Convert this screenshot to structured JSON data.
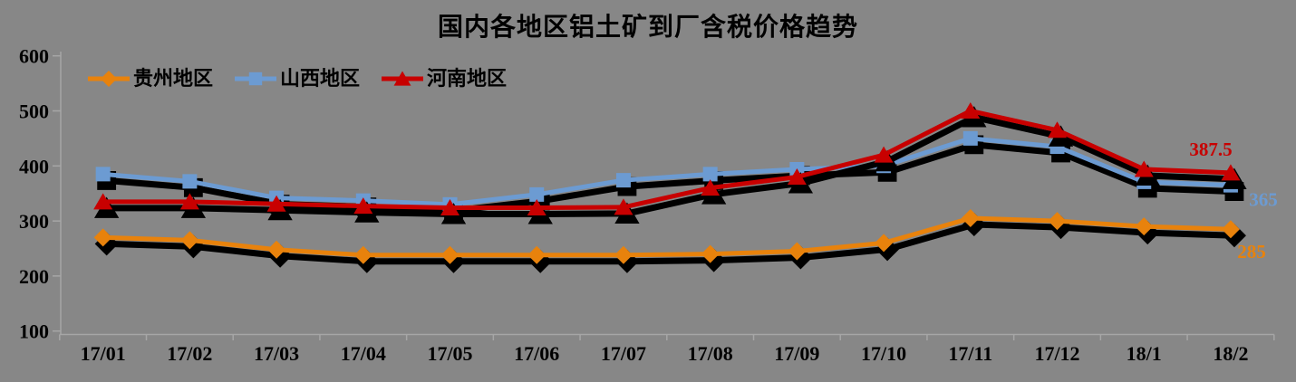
{
  "title": "国内各地区铝土矿到厂含税价格趋势",
  "chart_data": {
    "type": "line",
    "categories": [
      "17/01",
      "17/02",
      "17/03",
      "17/04",
      "17/05",
      "17/06",
      "17/07",
      "17/08",
      "17/09",
      "17/10",
      "17/11",
      "17/12",
      "18/1",
      "18/2"
    ],
    "series": [
      {
        "name": "贵州地区",
        "marker": "diamond",
        "color": "#E8820C",
        "values": [
          270,
          265,
          248,
          238,
          238,
          238,
          238,
          240,
          245,
          260,
          305,
          300,
          290,
          285
        ],
        "end_label": "285"
      },
      {
        "name": "山西地区",
        "marker": "square",
        "color": "#6C9BD2",
        "values": [
          385,
          372,
          342,
          337,
          330,
          348,
          374,
          385,
          394,
          400,
          450,
          435,
          371,
          365
        ],
        "end_label": "365"
      },
      {
        "name": "河南地区",
        "marker": "triangle",
        "color": "#C80000",
        "values": [
          335,
          335,
          331,
          327,
          324,
          324,
          325,
          360,
          380,
          420,
          500,
          465,
          394,
          387.5
        ],
        "end_label": "387.5"
      }
    ],
    "ylabel": "",
    "xlabel": "",
    "ylim": [
      100,
      600
    ],
    "yticks": [
      100,
      200,
      300,
      400,
      500,
      600
    ],
    "legend_position": "top-left",
    "grid": false
  },
  "colors": {
    "background": "#878787",
    "axis": "#A6A6A6",
    "text": "#000000",
    "shadow": "#000000"
  }
}
